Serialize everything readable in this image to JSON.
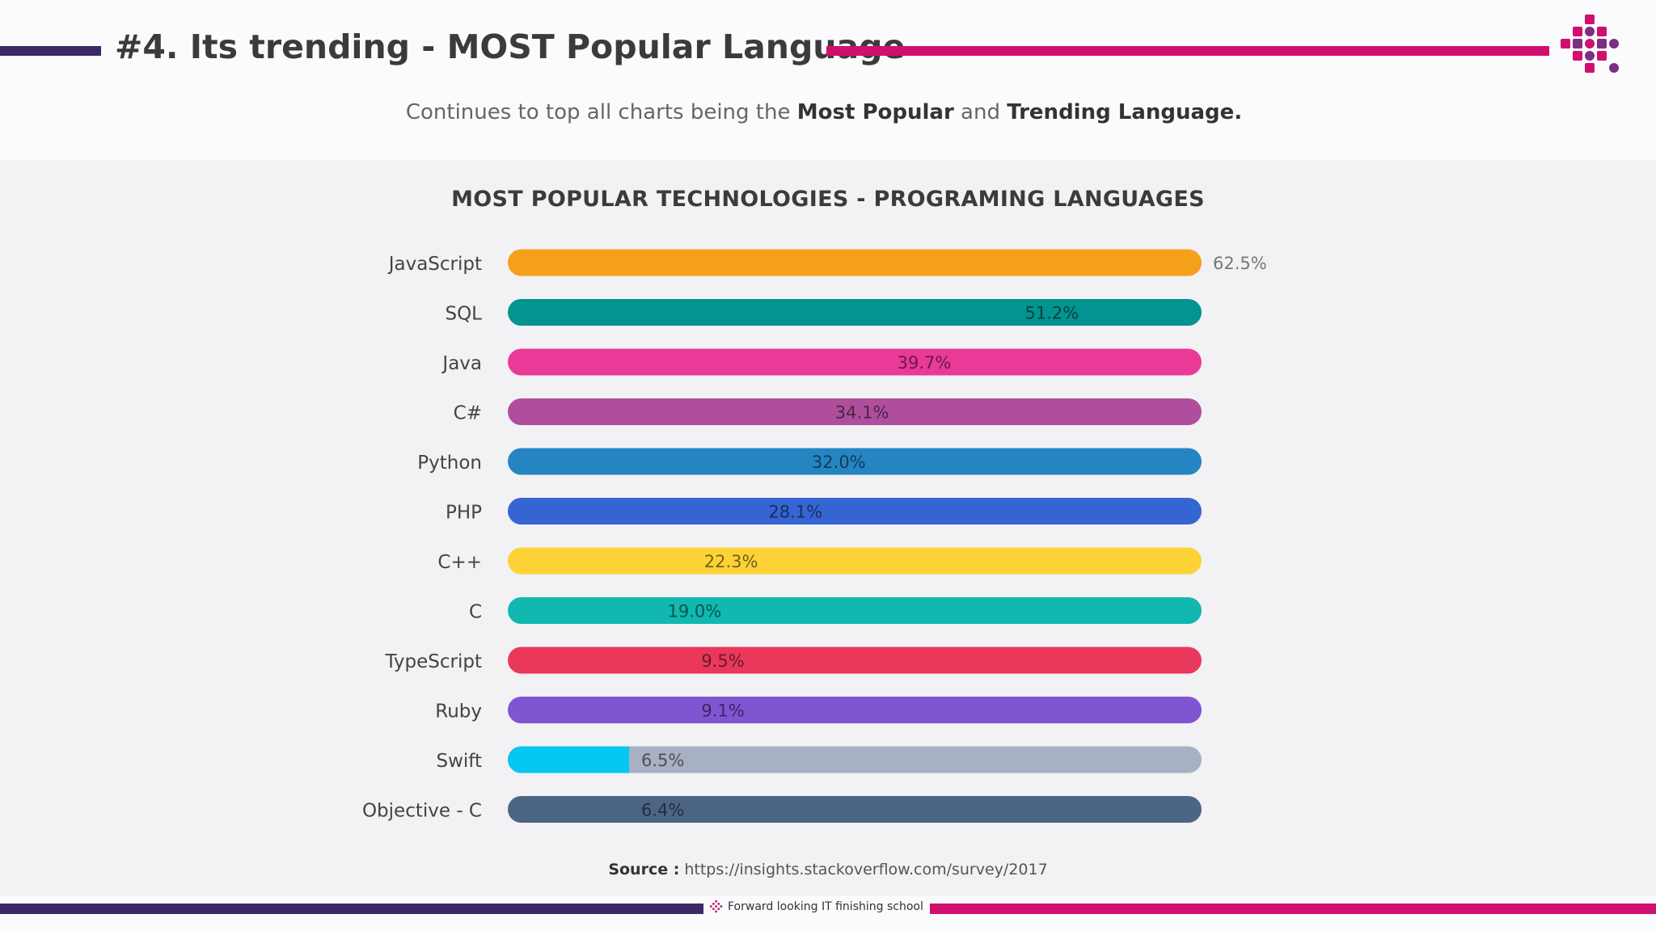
{
  "header": {
    "title": "#4. Its trending - MOST Popular Language",
    "subtitle_start": "Continues to top all charts being the ",
    "subtitle_bold1": "Most Popular",
    "subtitle_mid": " and ",
    "subtitle_bold2": "Trending Language."
  },
  "colors": {
    "brand_purple": "#3a2a66",
    "brand_magenta": "#d0106f",
    "track_gray": "#a8b0c4"
  },
  "chart_data": {
    "type": "bar",
    "title": "MOST POPULAR TECHNOLOGIES - PROGRAMING LANGUAGES",
    "categories": [
      "JavaScript",
      "SQL",
      "Java",
      "C#",
      "Python",
      "PHP",
      "C++",
      "C",
      "TypeScript",
      "Ruby",
      "Swift",
      "Objective - C"
    ],
    "values": [
      62.5,
      51.2,
      39.7,
      34.1,
      32.0,
      28.1,
      22.3,
      19.0,
      9.5,
      9.1,
      6.5,
      6.4
    ],
    "labels": [
      "62.5%",
      "51.2%",
      "39.7%",
      "34.1%",
      "32.0%",
      "28.1%",
      "22.3%",
      "19.0%",
      "9.5%",
      "9.1%",
      "6.5%",
      "6.4%"
    ],
    "colors": [
      "#f5a01a",
      "#039391",
      "#e93a98",
      "#ae4e9c",
      "#2585c3",
      "#3565d3",
      "#fdd236",
      "#10b8b0",
      "#e9385a",
      "#8155d2",
      "#06c6f4",
      "#4d6585"
    ],
    "orientation": "horizontal"
  },
  "source": {
    "label": "Source :",
    "url": "https://insights.stackoverflow.com/survey/2017"
  },
  "footer": {
    "tagline": "Forward looking IT finishing school"
  }
}
